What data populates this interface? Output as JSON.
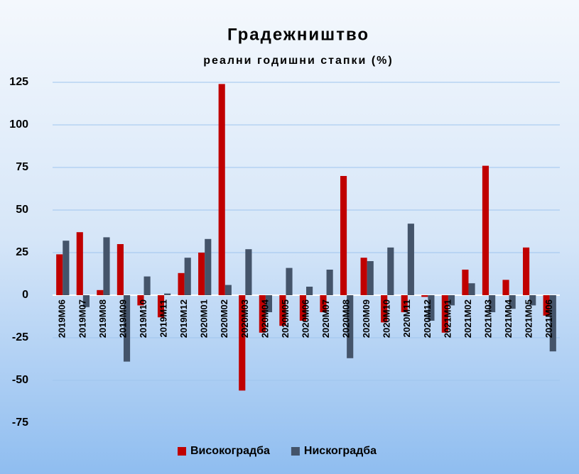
{
  "chart_data": {
    "type": "bar",
    "title": "Градежништво",
    "subtitle": "реални годишни стапки (%)",
    "categories": [
      "2019M06",
      "2019M07",
      "2019M08",
      "2019M09",
      "2019M10",
      "2019M11",
      "2019M12",
      "2020M01",
      "2020M02",
      "2020M03",
      "2020M04",
      "2020M05",
      "2020M06",
      "2020M07",
      "2020M08",
      "2020M09",
      "2020M10",
      "2020M11",
      "2020M12",
      "2021M01",
      "2021M02",
      "2021M03",
      "2021M04",
      "2021M05",
      "2021M06"
    ],
    "series": [
      {
        "name": "Високоградба",
        "color": "#c00000",
        "values": [
          24,
          37,
          3,
          30,
          -6,
          -13,
          13,
          25,
          124,
          -56,
          -22,
          -18,
          -15,
          -10,
          70,
          22,
          -16,
          -10,
          -1,
          -22,
          15,
          76,
          9,
          28,
          -12
        ]
      },
      {
        "name": "Нискоградба",
        "color": "#44546a",
        "values": [
          32,
          -7,
          34,
          -39,
          11,
          1,
          22,
          33,
          6,
          27,
          -10,
          16,
          5,
          15,
          -37,
          20,
          28,
          42,
          -15,
          -6,
          7,
          -10,
          -8,
          -6,
          -33
        ]
      }
    ],
    "ylim": [
      -75,
      125
    ],
    "yticks": [
      -75,
      -50,
      -25,
      0,
      25,
      50,
      75,
      100,
      125
    ],
    "grid": true,
    "legend": "bottom"
  }
}
